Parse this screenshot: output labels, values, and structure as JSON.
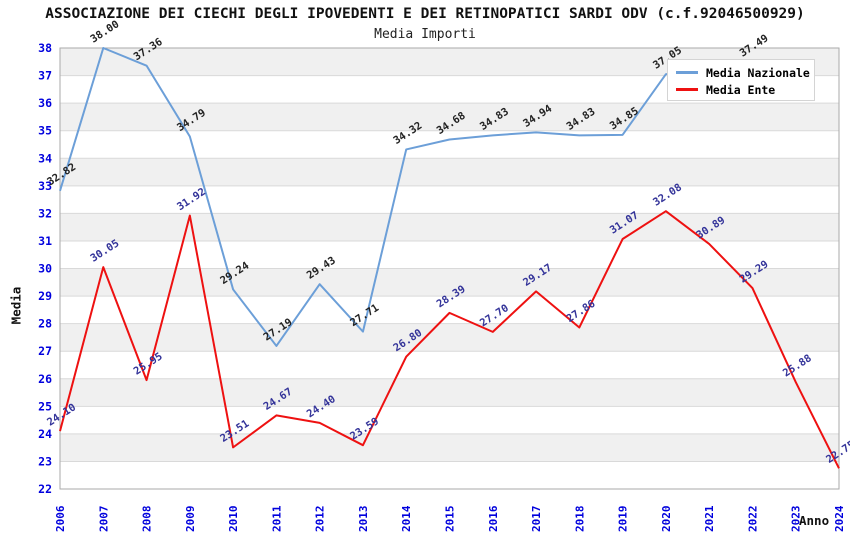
{
  "window": {
    "title": "ASSOCIAZIONE DEI CIECHI DEGLI IPOVEDENTI E DEI RETINOPATICI SARDI ODV (c.f.92046500929)",
    "subtitle": "Media Importi"
  },
  "chart_data": {
    "type": "line",
    "title": "ASSOCIAZIONE DEI CIECHI DEGLI IPOVEDENTI E DEI RETINOPATICI SARDI ODV (c.f.92046500929)",
    "subtitle": "Media Importi",
    "xlabel": "Anno",
    "ylabel": "Media",
    "ylim": [
      22,
      38
    ],
    "y_tick_step": 1,
    "yticks": [
      22,
      23,
      24,
      25,
      26,
      27,
      28,
      29,
      30,
      31,
      32,
      33,
      34,
      35,
      36,
      37,
      38
    ],
    "categories": [
      "2006",
      "2007",
      "2008",
      "2009",
      "2010",
      "2011",
      "2012",
      "2013",
      "2014",
      "2015",
      "2016",
      "2017",
      "2018",
      "2019",
      "2020",
      "2021",
      "2022",
      "2023",
      "2024"
    ],
    "series": [
      {
        "name": "Media Nazionale",
        "color": "#6c9fd8",
        "label_color": "#222222",
        "values": [
          32.82,
          38.0,
          37.36,
          34.79,
          29.24,
          27.19,
          29.43,
          27.71,
          34.32,
          34.68,
          34.83,
          34.94,
          34.83,
          34.85,
          37.05,
          null,
          37.49,
          null,
          null
        ]
      },
      {
        "name": "Media Ente",
        "color": "#ee1111",
        "label_color": "#333399",
        "values": [
          24.1,
          30.05,
          25.95,
          31.92,
          23.51,
          24.67,
          24.4,
          23.59,
          26.8,
          28.39,
          27.7,
          29.17,
          27.86,
          31.07,
          32.08,
          30.89,
          29.29,
          25.88,
          22.75
        ]
      }
    ],
    "legend_position": "top-right",
    "grid": "horizontal-bands-alternating",
    "data_labels": "two-decimals-rotated",
    "colors": {
      "tick_label": "#0000dd",
      "band_fill": "#f0f0f0",
      "gridline": "#d9d9d9",
      "plot_border": "#aaaaaa",
      "background": "#ffffff",
      "title_text": "#111111"
    }
  }
}
